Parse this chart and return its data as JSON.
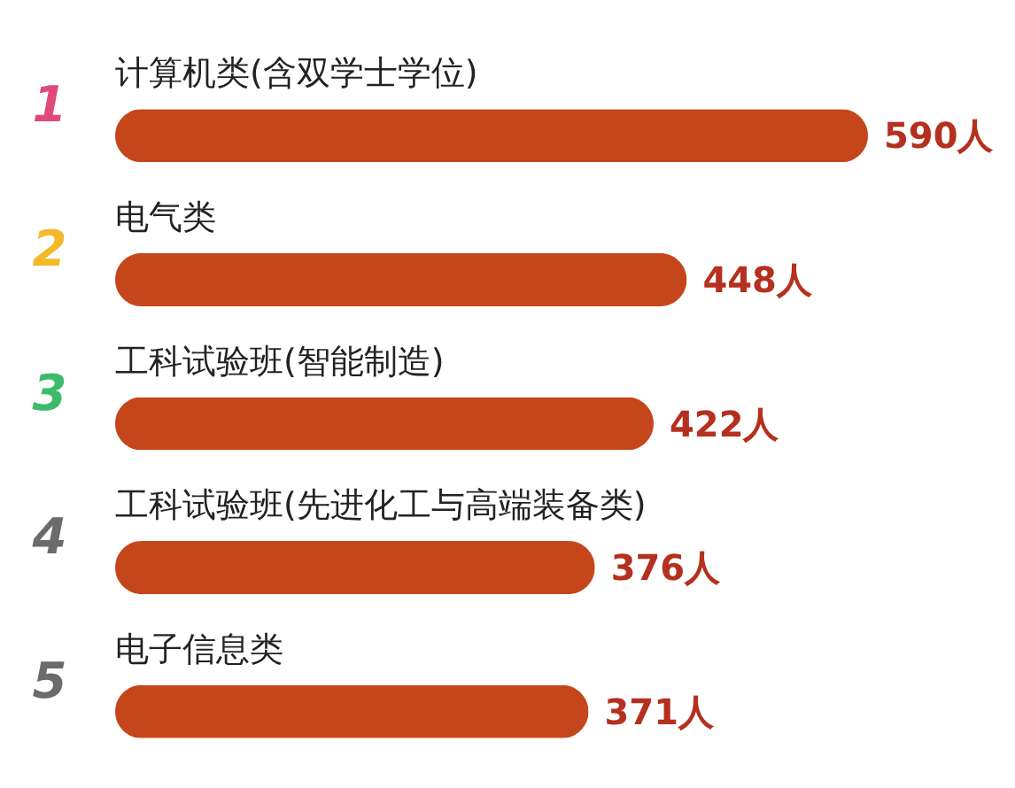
{
  "chart_data": {
    "type": "bar",
    "orientation": "horizontal",
    "categories": [
      "计算机类(含双学士学位)",
      "电气类",
      "工科试验班(智能制造)",
      "工科试验班(先进化工与高端装备类)",
      "电子信息类"
    ],
    "values": [
      590,
      448,
      422,
      376,
      371
    ],
    "value_labels": [
      "590人",
      "448人",
      "422人",
      "376人",
      "371人"
    ],
    "color": "#c4461a",
    "annotations": [
      "1",
      "2",
      "3",
      "4",
      "5"
    ]
  }
}
